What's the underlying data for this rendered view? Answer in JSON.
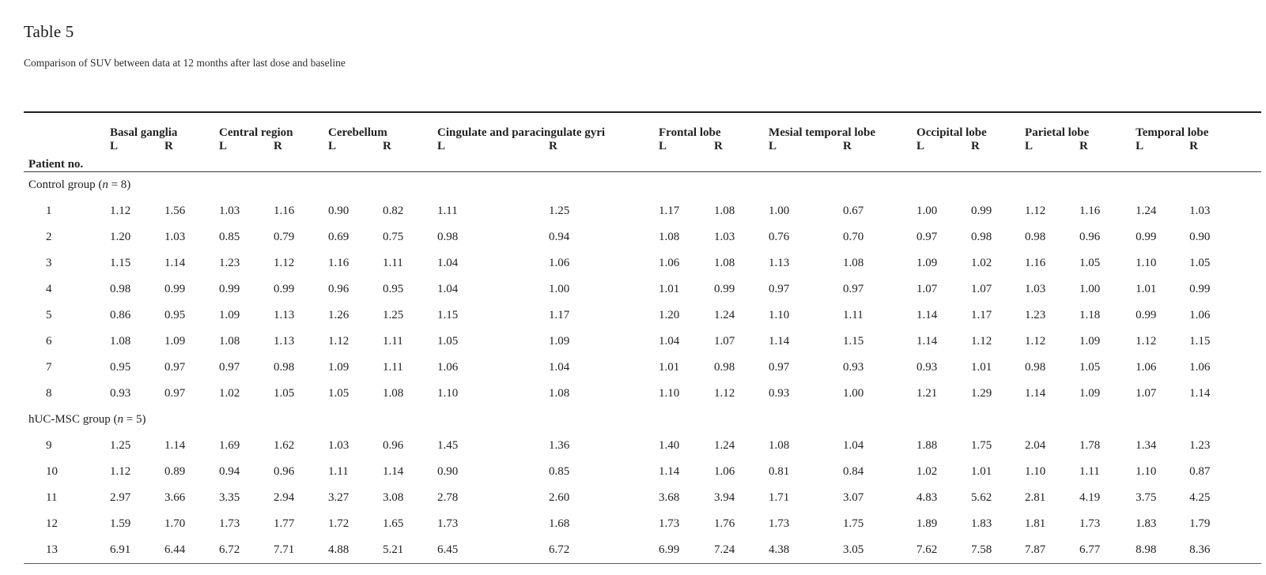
{
  "title": "Table 5",
  "subtitle": "Comparison of SUV between data at 12 months after last dose and baseline",
  "table": {
    "patient_header": "Patient no.",
    "side_labels": {
      "left": "L",
      "right": "R"
    },
    "regions": [
      {
        "label": "Basal ganglia"
      },
      {
        "label": "Central region"
      },
      {
        "label": "Cerebellum"
      },
      {
        "label": "Cingulate and paracingulate gyri"
      },
      {
        "label": "Frontal lobe"
      },
      {
        "label": "Mesial temporal lobe"
      },
      {
        "label": "Occipital lobe"
      },
      {
        "label": "Parietal lobe"
      },
      {
        "label": "Temporal lobe"
      }
    ],
    "groups": [
      {
        "label_prefix": "Control group (",
        "label_var": "n",
        "label_suffix": " = 8)",
        "rows": [
          {
            "patient": "1",
            "values": [
              "1.12",
              "1.56",
              "1.03",
              "1.16",
              "0.90",
              "0.82",
              "1.11",
              "1.25",
              "1.17",
              "1.08",
              "1.00",
              "0.67",
              "1.00",
              "0.99",
              "1.12",
              "1.16",
              "1.24",
              "1.03"
            ]
          },
          {
            "patient": "2",
            "values": [
              "1.20",
              "1.03",
              "0.85",
              "0.79",
              "0.69",
              "0.75",
              "0.98",
              "0.94",
              "1.08",
              "1.03",
              "0.76",
              "0.70",
              "0.97",
              "0.98",
              "0.98",
              "0.96",
              "0.99",
              "0.90"
            ]
          },
          {
            "patient": "3",
            "values": [
              "1.15",
              "1.14",
              "1.23",
              "1.12",
              "1.16",
              "1.11",
              "1.04",
              "1.06",
              "1.06",
              "1.08",
              "1.13",
              "1.08",
              "1.09",
              "1.02",
              "1.16",
              "1.05",
              "1.10",
              "1.05"
            ]
          },
          {
            "patient": "4",
            "values": [
              "0.98",
              "0.99",
              "0.99",
              "0.99",
              "0.96",
              "0.95",
              "1.04",
              "1.00",
              "1.01",
              "0.99",
              "0.97",
              "0.97",
              "1.07",
              "1.07",
              "1.03",
              "1.00",
              "1.01",
              "0.99"
            ]
          },
          {
            "patient": "5",
            "values": [
              "0.86",
              "0.95",
              "1.09",
              "1.13",
              "1.26",
              "1.25",
              "1.15",
              "1.17",
              "1.20",
              "1.24",
              "1.10",
              "1.11",
              "1.14",
              "1.17",
              "1.23",
              "1.18",
              "0.99",
              "1.06"
            ]
          },
          {
            "patient": "6",
            "values": [
              "1.08",
              "1.09",
              "1.08",
              "1.13",
              "1.12",
              "1.11",
              "1.05",
              "1.09",
              "1.04",
              "1.07",
              "1.14",
              "1.15",
              "1.14",
              "1.12",
              "1.12",
              "1.09",
              "1.12",
              "1.15"
            ]
          },
          {
            "patient": "7",
            "values": [
              "0.95",
              "0.97",
              "0.97",
              "0.98",
              "1.09",
              "1.11",
              "1.06",
              "1.04",
              "1.01",
              "0.98",
              "0.97",
              "0.93",
              "0.93",
              "1.01",
              "0.98",
              "1.05",
              "1.06",
              "1.06"
            ]
          },
          {
            "patient": "8",
            "values": [
              "0.93",
              "0.97",
              "1.02",
              "1.05",
              "1.05",
              "1.08",
              "1.10",
              "1.08",
              "1.10",
              "1.12",
              "0.93",
              "1.00",
              "1.21",
              "1.29",
              "1.14",
              "1.09",
              "1.07",
              "1.14"
            ]
          }
        ]
      },
      {
        "label_prefix": "hUC-MSC group (",
        "label_var": "n",
        "label_suffix": " = 5)",
        "rows": [
          {
            "patient": "9",
            "values": [
              "1.25",
              "1.14",
              "1.69",
              "1.62",
              "1.03",
              "0.96",
              "1.45",
              "1.36",
              "1.40",
              "1.24",
              "1.08",
              "1.04",
              "1.88",
              "1.75",
              "2.04",
              "1.78",
              "1.34",
              "1.23"
            ]
          },
          {
            "patient": "10",
            "values": [
              "1.12",
              "0.89",
              "0.94",
              "0.96",
              "1.11",
              "1.14",
              "0.90",
              "0.85",
              "1.14",
              "1.06",
              "0.81",
              "0.84",
              "1.02",
              "1.01",
              "1.10",
              "1.11",
              "1.10",
              "0.87"
            ]
          },
          {
            "patient": "11",
            "values": [
              "2.97",
              "3.66",
              "3.35",
              "2.94",
              "3.27",
              "3.08",
              "2.78",
              "2.60",
              "3.68",
              "3.94",
              "1.71",
              "3.07",
              "4.83",
              "5.62",
              "2.81",
              "4.19",
              "3.75",
              "4.25"
            ]
          },
          {
            "patient": "12",
            "values": [
              "1.59",
              "1.70",
              "1.73",
              "1.77",
              "1.72",
              "1.65",
              "1.73",
              "1.68",
              "1.73",
              "1.76",
              "1.73",
              "1.75",
              "1.89",
              "1.83",
              "1.81",
              "1.73",
              "1.83",
              "1.79"
            ]
          },
          {
            "patient": "13",
            "values": [
              "6.91",
              "6.44",
              "6.72",
              "7.71",
              "4.88",
              "5.21",
              "6.45",
              "6.72",
              "6.99",
              "7.24",
              "4.38",
              "3.05",
              "7.62",
              "7.58",
              "7.87",
              "6.77",
              "8.98",
              "8.36"
            ]
          }
        ]
      }
    ]
  }
}
